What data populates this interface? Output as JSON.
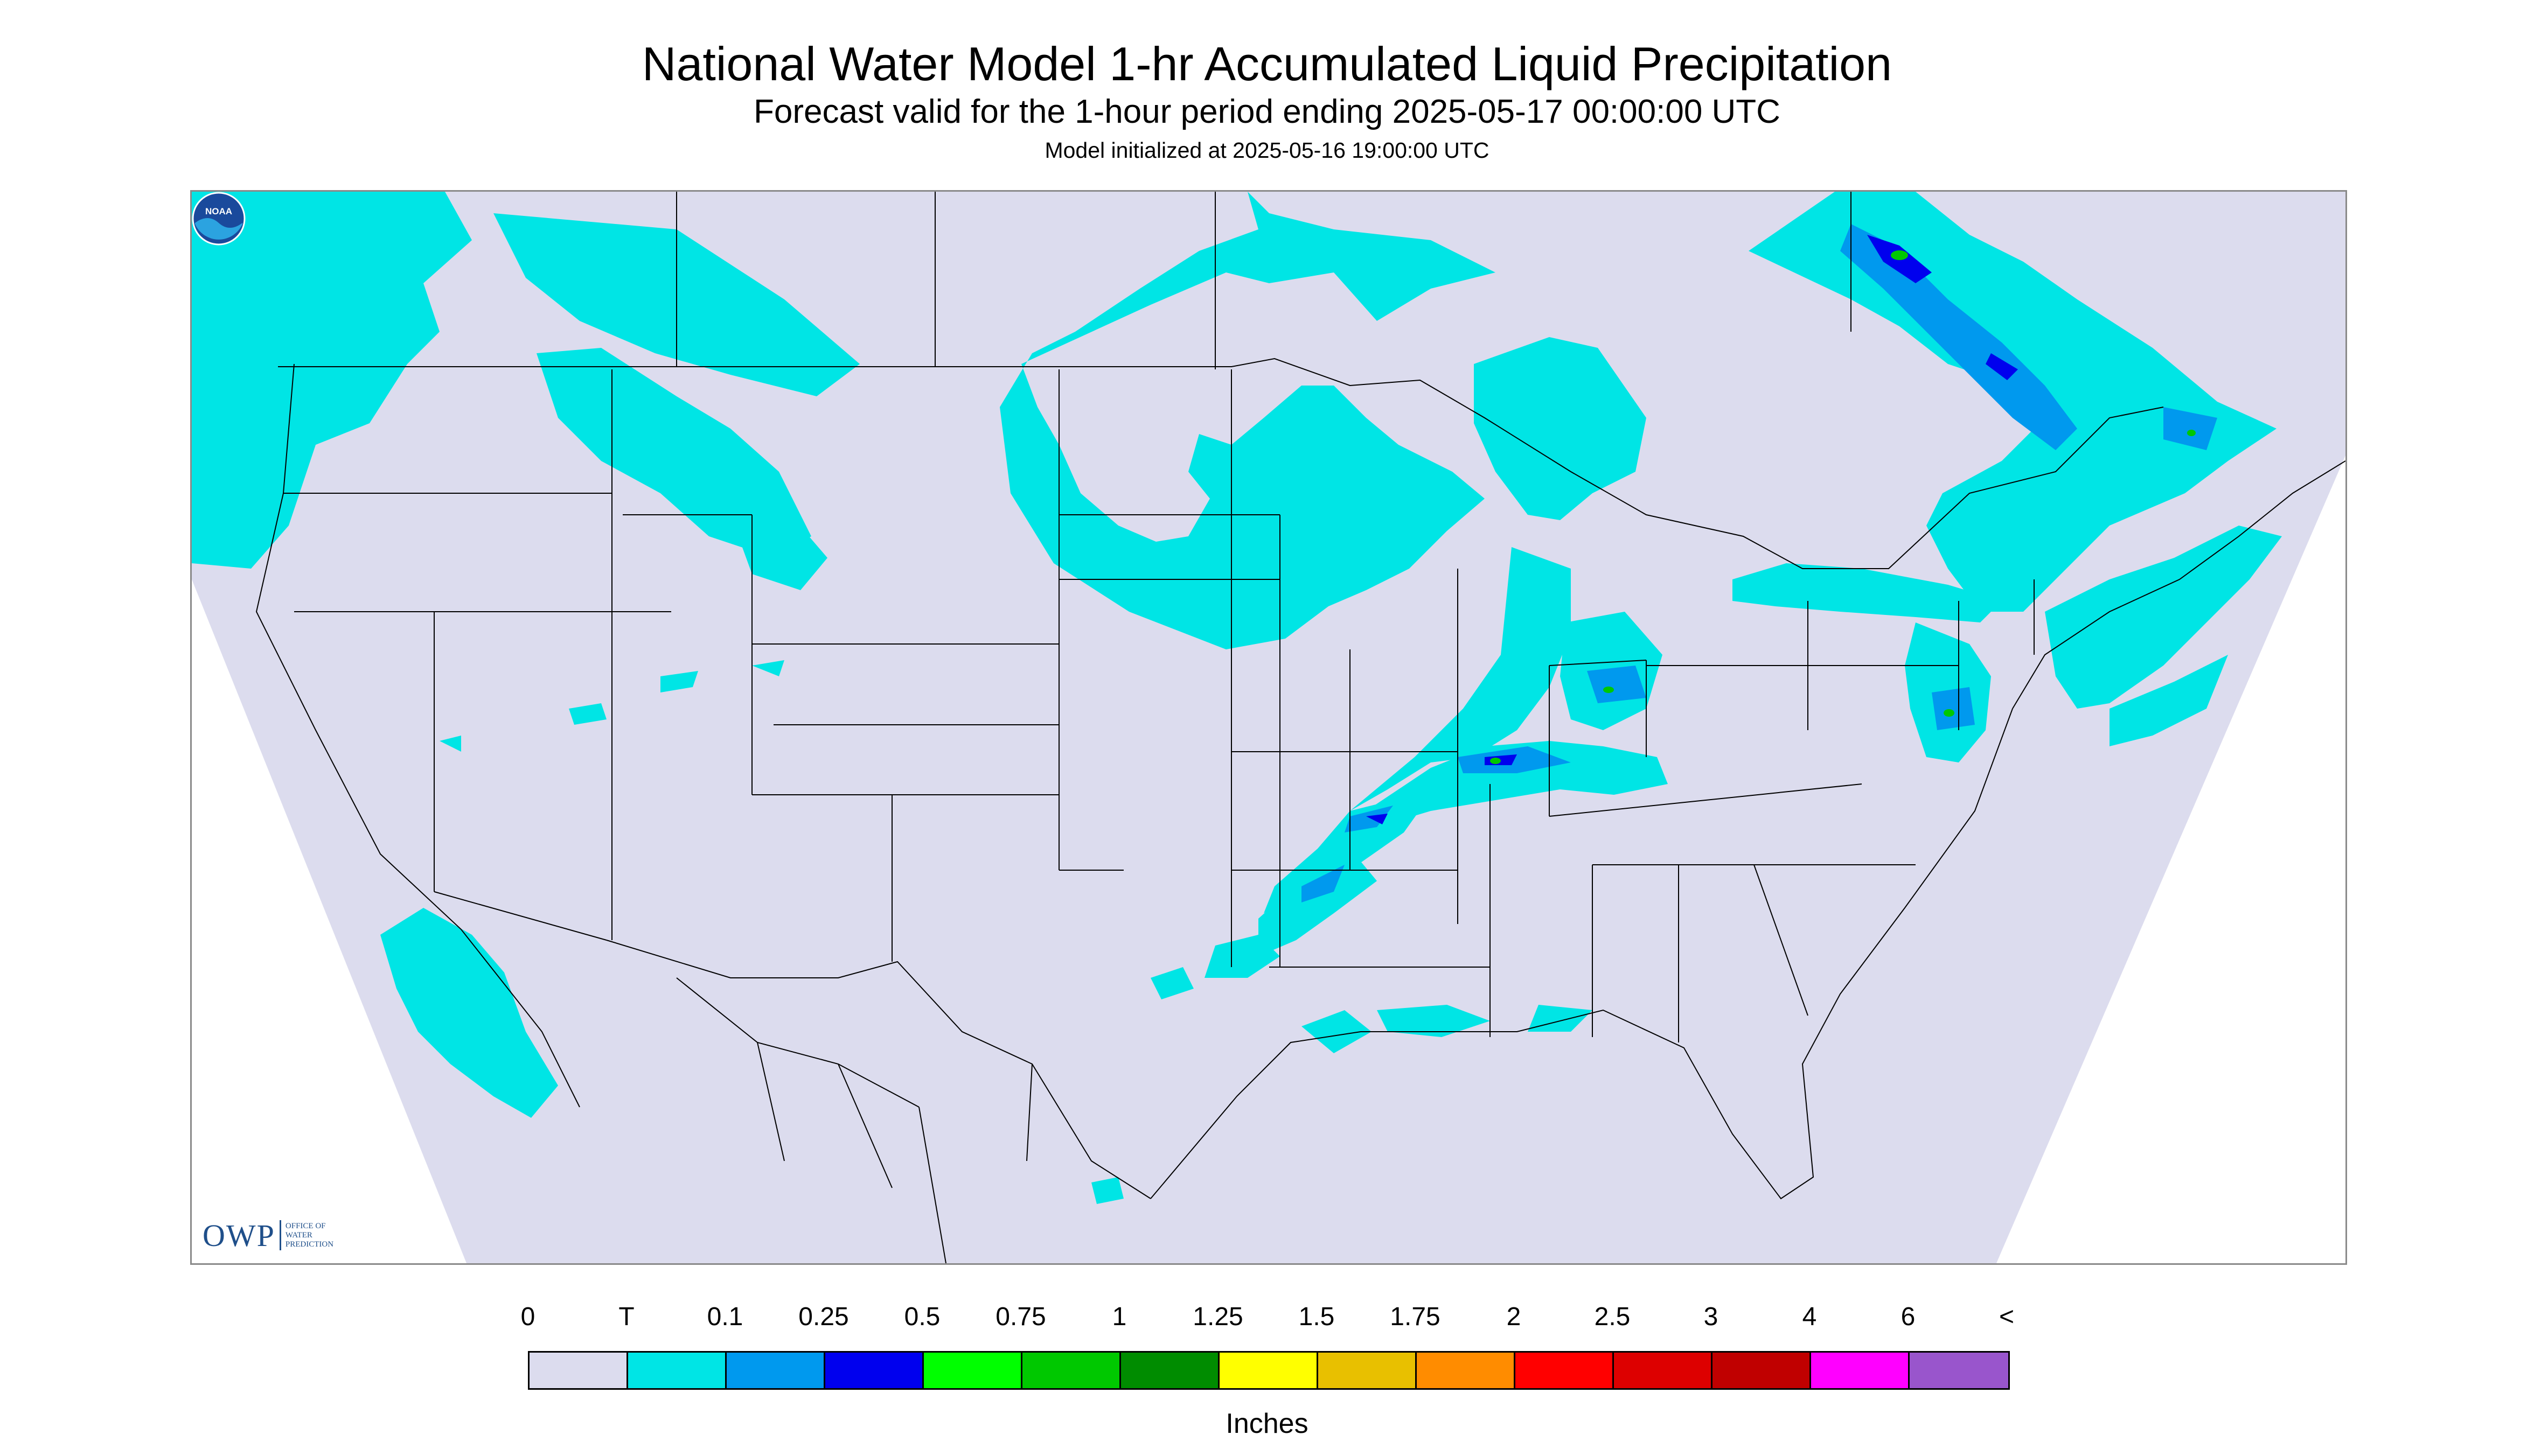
{
  "title": "National Water Model 1-hr Accumulated Liquid Precipitation",
  "subtitle": "Forecast valid for the 1-hour period ending 2025-05-17 00:00:00 UTC",
  "init_line": "Model initialized at 2025-05-16 19:00:00 UTC",
  "logos": {
    "owp_big": "OWP",
    "owp_small": [
      "OFFICE OF",
      "WATER",
      "PREDICTION"
    ],
    "noaa_text": "NOAA"
  },
  "legend": {
    "labels": [
      "0",
      "T",
      "0.1",
      "0.25",
      "0.5",
      "0.75",
      "1",
      "1.25",
      "1.5",
      "1.75",
      "2",
      "2.5",
      "3",
      "4",
      "6",
      "<"
    ],
    "colors": [
      "#dcdcee",
      "#00e5e5",
      "#0099ee",
      "#0000ee",
      "#00ff00",
      "#00c800",
      "#008c00",
      "#ffff00",
      "#e8c000",
      "#ff8c00",
      "#ff0000",
      "#dd0000",
      "#c00000",
      "#ff00ff",
      "#9955cc"
    ],
    "units": "Inches"
  },
  "map_colors": {
    "domain": "#dcdcee",
    "outside": "#ffffff",
    "boundaries": "#000000",
    "trace": "#00e5e5",
    "light": "#0099ee",
    "moderate": "#0000ee",
    "heavy": "#00c800"
  }
}
